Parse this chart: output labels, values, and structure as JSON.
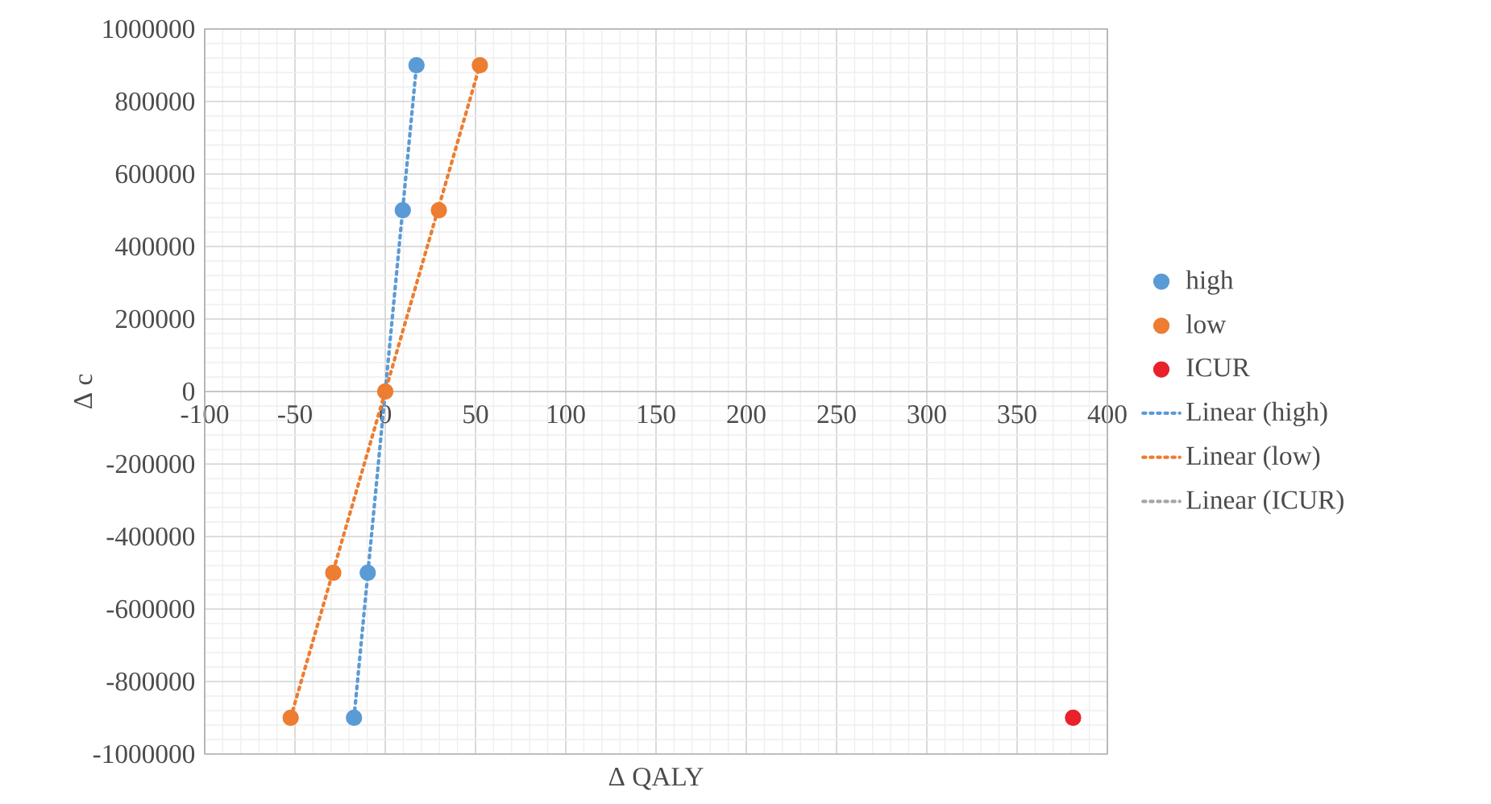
{
  "chart_data": {
    "type": "scatter",
    "xlabel": "Δ QALY",
    "ylabel": "Δ c",
    "xlim": [
      -100,
      400
    ],
    "ylim": [
      -1000000,
      1000000
    ],
    "xticks": [
      -100,
      -50,
      0,
      50,
      100,
      150,
      200,
      250,
      300,
      350,
      400
    ],
    "yticks": [
      -1000000,
      -800000,
      -600000,
      -400000,
      -200000,
      0,
      200000,
      400000,
      600000,
      800000,
      1000000
    ],
    "grid": true,
    "legend": "right",
    "marker": "circle",
    "series": [
      {
        "name": "high",
        "color": "#5b9bd5",
        "x": [
          17.3,
          9.7,
          -9.7,
          -17.3
        ],
        "values": [
          900000,
          500000,
          -500000,
          -900000
        ]
      },
      {
        "name": "low",
        "color": "#ed7d31",
        "x": [
          52.4,
          29.7,
          0,
          -28.8,
          -52.4
        ],
        "values": [
          900000,
          500000,
          0,
          -500000,
          -900000
        ]
      },
      {
        "name": "ICUR",
        "color": "#e8212a",
        "x": [
          381
        ],
        "values": [
          -900000
        ]
      },
      {
        "name": "Linear (high)",
        "type": "line",
        "marker": "none",
        "line_style": "dotted",
        "color": "#5b9bd5",
        "x": [
          -17.3,
          17.3
        ],
        "values": [
          -900000,
          900000
        ]
      },
      {
        "name": "Linear (low)",
        "type": "line",
        "marker": "none",
        "line_style": "dotted",
        "color": "#ed7d31",
        "x": [
          -52.4,
          52.4
        ],
        "values": [
          -900000,
          900000
        ]
      },
      {
        "name": "Linear (ICUR)",
        "type": "line",
        "marker": "none",
        "line_style": "dotted",
        "color": "#a5a5a5"
      }
    ]
  }
}
